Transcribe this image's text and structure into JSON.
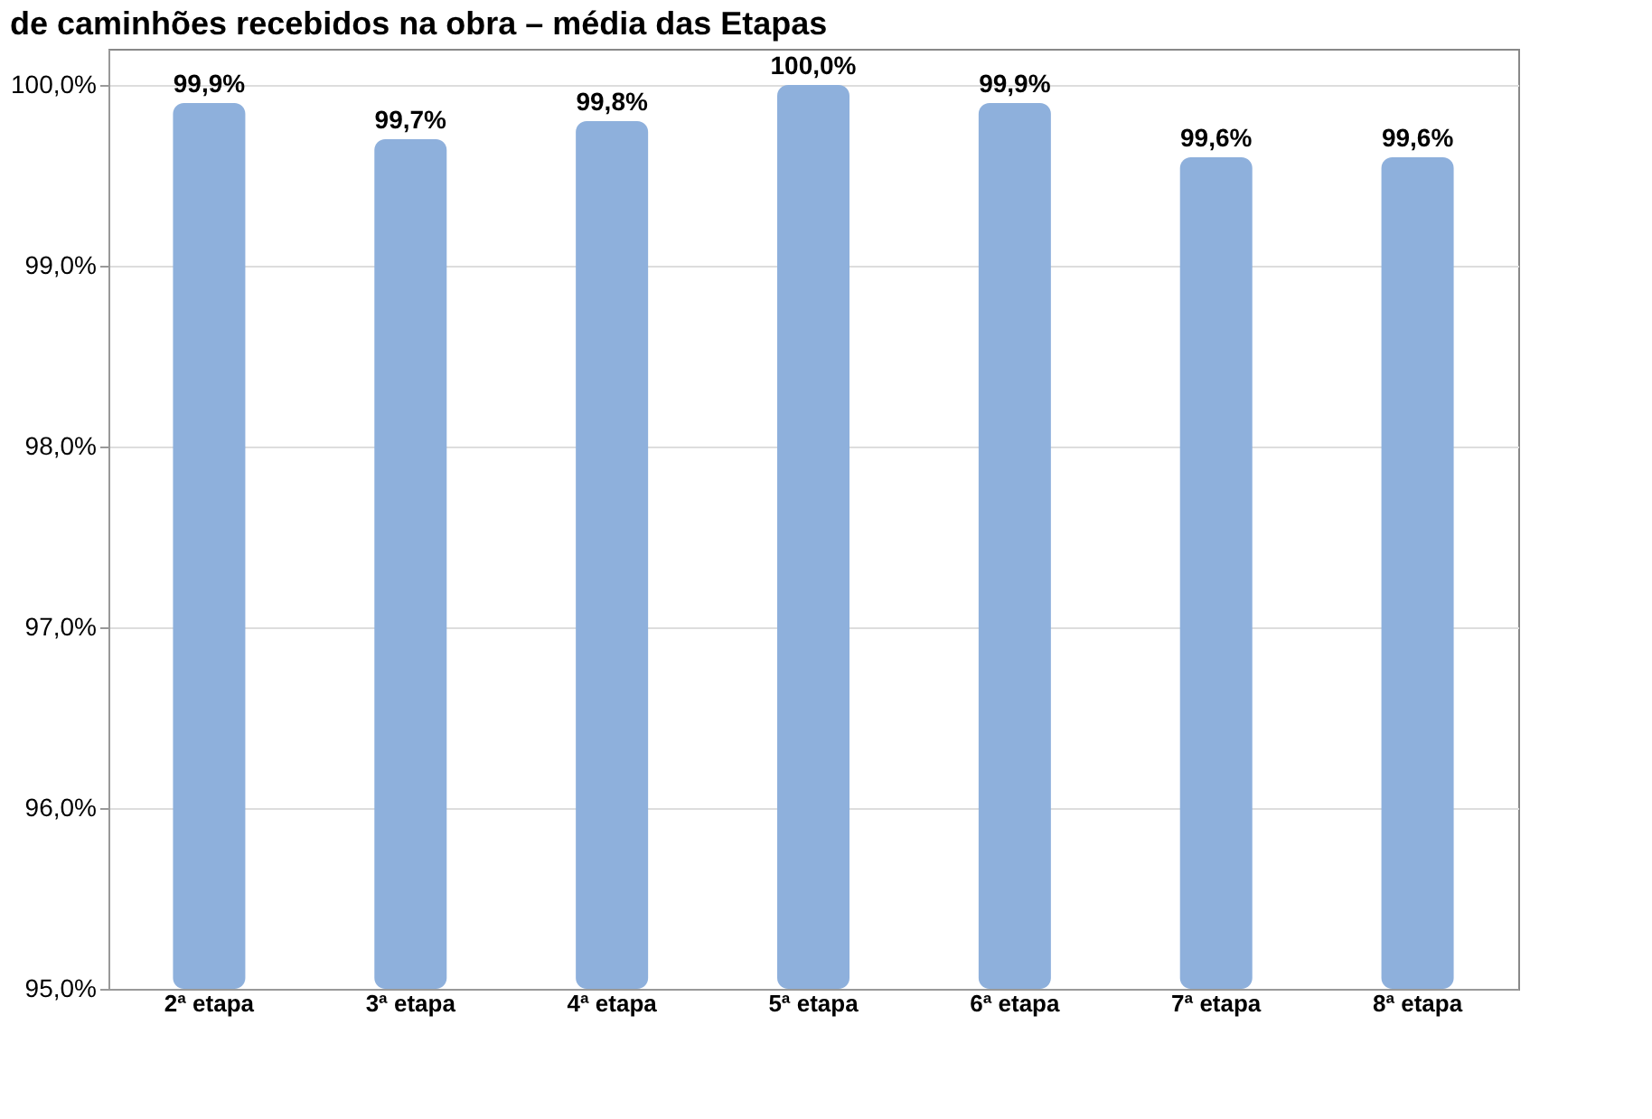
{
  "chart_data": {
    "type": "bar",
    "title": "de caminhões recebidos na obra – média das Etapas",
    "categories": [
      "2ª etapa",
      "3ª etapa",
      "4ª etapa",
      "5ª etapa",
      "6ª etapa",
      "7ª etapa",
      "8ª etapa"
    ],
    "values": [
      99.9,
      99.7,
      99.8,
      100.0,
      99.9,
      99.6,
      99.6
    ],
    "value_labels": [
      "99,9%",
      "99,7%",
      "99,8%",
      "100,0%",
      "99,9%",
      "99,6%",
      "99,6%"
    ],
    "color": "#8eb0dc",
    "ylim": [
      95,
      100.2
    ],
    "yticks": [
      {
        "value": 95,
        "label": "95,0%"
      },
      {
        "value": 96,
        "label": "96,0%"
      },
      {
        "value": 97,
        "label": "97,0%"
      },
      {
        "value": 98,
        "label": "98,0%"
      },
      {
        "value": 99,
        "label": "99,0%"
      },
      {
        "value": 100,
        "label": "100,0%"
      }
    ],
    "grid": "y"
  }
}
